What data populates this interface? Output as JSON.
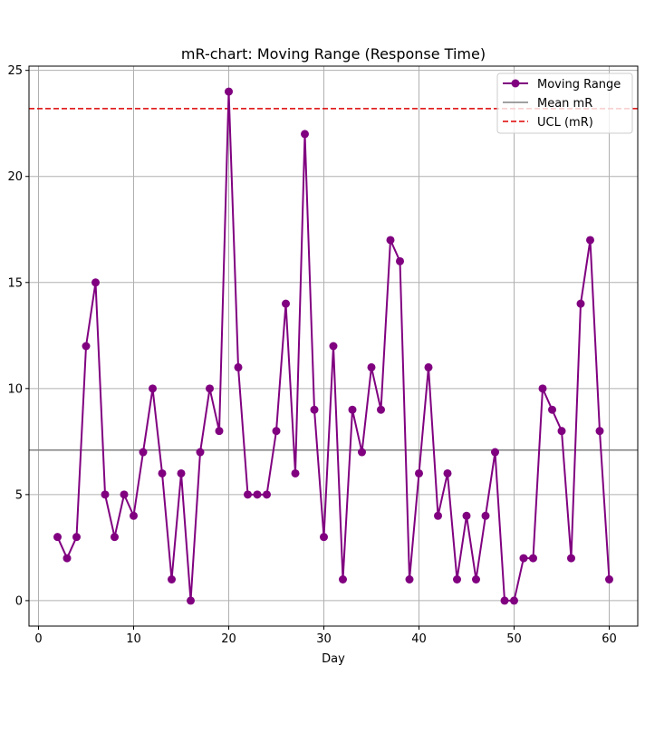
{
  "chart_data": {
    "type": "line",
    "title": "mR-chart: Moving Range (Response Time)",
    "xlabel": "Day",
    "ylabel": "",
    "xlim": [
      -1,
      63
    ],
    "ylim": [
      -1.2,
      25.2
    ],
    "xticks": [
      0,
      10,
      20,
      30,
      40,
      50,
      60
    ],
    "yticks": [
      0,
      5,
      10,
      15,
      20,
      25
    ],
    "grid": true,
    "legend_position": "top-right",
    "legend": [
      "Moving Range",
      "Mean mR",
      "UCL (mR)"
    ],
    "series": [
      {
        "name": "Moving Range",
        "color": "#800080",
        "marker": "circle",
        "x": [
          2,
          3,
          4,
          5,
          6,
          7,
          8,
          9,
          10,
          11,
          12,
          13,
          14,
          15,
          16,
          17,
          18,
          19,
          20,
          21,
          22,
          23,
          24,
          25,
          26,
          27,
          28,
          29,
          30,
          31,
          32,
          33,
          34,
          35,
          36,
          37,
          38,
          39,
          40,
          41,
          42,
          43,
          44,
          45,
          46,
          47,
          48,
          49,
          50,
          51,
          52,
          53,
          54,
          55,
          56,
          57,
          58,
          59,
          60
        ],
        "values": [
          3,
          2,
          3,
          12,
          15,
          5,
          3,
          5,
          4,
          7,
          10,
          6,
          1,
          6,
          0,
          7,
          10,
          8,
          24,
          11,
          5,
          5,
          5,
          8,
          14,
          6,
          22,
          9,
          3,
          12,
          1,
          9,
          7,
          11,
          9,
          17,
          16,
          1,
          6,
          11,
          4,
          6,
          1,
          4,
          1,
          4,
          7,
          0,
          0,
          2,
          2,
          10,
          9,
          8,
          2,
          14,
          17,
          8,
          1
        ]
      }
    ],
    "reference_lines": [
      {
        "name": "Mean mR",
        "value": 7.1,
        "color": "#808080",
        "style": "solid"
      },
      {
        "name": "UCL (mR)",
        "value": 23.2,
        "color": "#dd0000",
        "style": "dashed"
      }
    ]
  }
}
